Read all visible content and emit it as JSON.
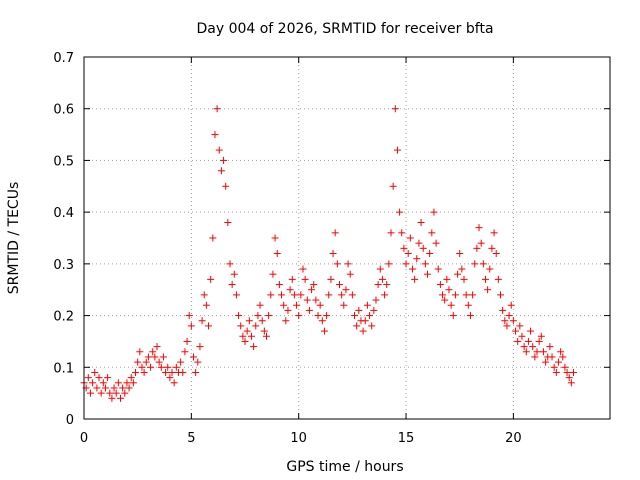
{
  "chart_data": {
    "type": "scatter",
    "title": "Day 004 of 2026, SRMTID for receiver bfta",
    "xlabel": "GPS time / hours",
    "ylabel": "SRMTID / TECUs",
    "xlim": [
      0,
      24.5
    ],
    "ylim": [
      0,
      0.7
    ],
    "xticks": [
      0,
      5,
      10,
      15,
      20
    ],
    "xtick_labels": [
      "0",
      "5",
      "10",
      "15",
      "20"
    ],
    "yticks": [
      0,
      0.1,
      0.2,
      0.3,
      0.4,
      0.5,
      0.6,
      0.7
    ],
    "ytick_labels": [
      "0",
      "0.1",
      "0.2",
      "0.3",
      "0.4",
      "0.5",
      "0.6",
      "0.7"
    ],
    "grid": true,
    "marker": "plus",
    "color": "#ff0000",
    "series": [
      {
        "name": "SRMTID",
        "x": [
          0.0,
          0.1,
          0.2,
          0.3,
          0.4,
          0.5,
          0.6,
          0.7,
          0.8,
          0.9,
          1.0,
          1.1,
          1.2,
          1.3,
          1.4,
          1.5,
          1.6,
          1.7,
          1.8,
          1.9,
          2.0,
          2.1,
          2.2,
          2.3,
          2.4,
          2.5,
          2.6,
          2.7,
          2.8,
          2.9,
          3.0,
          3.1,
          3.2,
          3.3,
          3.4,
          3.5,
          3.6,
          3.7,
          3.8,
          3.9,
          4.0,
          4.1,
          4.2,
          4.3,
          4.4,
          4.5,
          4.6,
          4.7,
          4.8,
          4.9,
          5.0,
          5.1,
          5.2,
          5.3,
          5.4,
          5.5,
          5.6,
          5.7,
          5.8,
          5.9,
          6.0,
          6.1,
          6.2,
          6.3,
          6.4,
          6.5,
          6.6,
          6.7,
          6.8,
          6.9,
          7.0,
          7.1,
          7.2,
          7.3,
          7.4,
          7.5,
          7.6,
          7.7,
          7.8,
          7.9,
          8.0,
          8.1,
          8.2,
          8.3,
          8.4,
          8.5,
          8.6,
          8.7,
          8.8,
          8.9,
          9.0,
          9.1,
          9.2,
          9.3,
          9.4,
          9.5,
          9.6,
          9.7,
          9.8,
          9.9,
          10.0,
          10.1,
          10.2,
          10.3,
          10.4,
          10.5,
          10.6,
          10.7,
          10.8,
          10.9,
          11.0,
          11.1,
          11.2,
          11.3,
          11.4,
          11.5,
          11.6,
          11.7,
          11.8,
          11.9,
          12.0,
          12.1,
          12.2,
          12.3,
          12.4,
          12.5,
          12.6,
          12.7,
          12.8,
          12.9,
          13.0,
          13.1,
          13.2,
          13.3,
          13.4,
          13.5,
          13.6,
          13.7,
          13.8,
          13.9,
          14.0,
          14.1,
          14.2,
          14.3,
          14.4,
          14.5,
          14.6,
          14.7,
          14.8,
          14.9,
          15.0,
          15.1,
          15.2,
          15.3,
          15.4,
          15.5,
          15.6,
          15.7,
          15.8,
          15.9,
          16.0,
          16.1,
          16.2,
          16.3,
          16.4,
          16.5,
          16.6,
          16.7,
          16.8,
          16.9,
          17.0,
          17.1,
          17.2,
          17.3,
          17.4,
          17.5,
          17.6,
          17.7,
          17.8,
          17.9,
          18.0,
          18.1,
          18.2,
          18.3,
          18.4,
          18.5,
          18.6,
          18.7,
          18.8,
          18.9,
          19.0,
          19.1,
          19.2,
          19.3,
          19.4,
          19.5,
          19.6,
          19.7,
          19.8,
          19.9,
          20.0,
          20.1,
          20.2,
          20.3,
          20.4,
          20.5,
          20.6,
          20.7,
          20.8,
          20.9,
          21.0,
          21.1,
          21.2,
          21.3,
          21.4,
          21.5,
          21.6,
          21.7,
          21.8,
          21.9,
          22.0,
          22.1,
          22.2,
          22.3,
          22.4,
          22.5,
          22.6,
          22.7,
          22.8
        ],
        "y": [
          0.07,
          0.06,
          0.08,
          0.05,
          0.07,
          0.09,
          0.06,
          0.08,
          0.05,
          0.07,
          0.06,
          0.08,
          0.05,
          0.04,
          0.06,
          0.05,
          0.07,
          0.04,
          0.06,
          0.05,
          0.07,
          0.06,
          0.08,
          0.07,
          0.09,
          0.11,
          0.13,
          0.1,
          0.09,
          0.11,
          0.12,
          0.1,
          0.13,
          0.12,
          0.14,
          0.11,
          0.1,
          0.12,
          0.09,
          0.1,
          0.08,
          0.09,
          0.07,
          0.1,
          0.09,
          0.11,
          0.09,
          0.13,
          0.15,
          0.2,
          0.18,
          0.12,
          0.09,
          0.11,
          0.14,
          0.19,
          0.24,
          0.22,
          0.18,
          0.27,
          0.35,
          0.55,
          0.6,
          0.52,
          0.48,
          0.5,
          0.45,
          0.38,
          0.3,
          0.26,
          0.28,
          0.24,
          0.2,
          0.18,
          0.16,
          0.15,
          0.17,
          0.19,
          0.16,
          0.14,
          0.18,
          0.2,
          0.22,
          0.19,
          0.17,
          0.16,
          0.2,
          0.24,
          0.28,
          0.35,
          0.32,
          0.26,
          0.24,
          0.22,
          0.19,
          0.21,
          0.25,
          0.27,
          0.24,
          0.22,
          0.2,
          0.24,
          0.29,
          0.27,
          0.23,
          0.21,
          0.25,
          0.26,
          0.23,
          0.2,
          0.22,
          0.19,
          0.17,
          0.2,
          0.24,
          0.27,
          0.32,
          0.36,
          0.3,
          0.26,
          0.24,
          0.22,
          0.25,
          0.3,
          0.28,
          0.24,
          0.2,
          0.18,
          0.21,
          0.19,
          0.17,
          0.19,
          0.22,
          0.2,
          0.18,
          0.21,
          0.23,
          0.26,
          0.29,
          0.27,
          0.24,
          0.26,
          0.3,
          0.36,
          0.45,
          0.6,
          0.52,
          0.4,
          0.36,
          0.33,
          0.3,
          0.32,
          0.35,
          0.29,
          0.27,
          0.31,
          0.34,
          0.38,
          0.33,
          0.3,
          0.28,
          0.32,
          0.36,
          0.4,
          0.34,
          0.29,
          0.26,
          0.24,
          0.23,
          0.27,
          0.25,
          0.22,
          0.2,
          0.24,
          0.28,
          0.32,
          0.29,
          0.27,
          0.24,
          0.22,
          0.2,
          0.24,
          0.3,
          0.33,
          0.37,
          0.34,
          0.3,
          0.27,
          0.25,
          0.29,
          0.33,
          0.36,
          0.32,
          0.27,
          0.24,
          0.21,
          0.19,
          0.18,
          0.2,
          0.22,
          0.19,
          0.17,
          0.15,
          0.18,
          0.16,
          0.14,
          0.13,
          0.15,
          0.17,
          0.14,
          0.12,
          0.13,
          0.15,
          0.16,
          0.13,
          0.11,
          0.12,
          0.14,
          0.12,
          0.1,
          0.09,
          0.11,
          0.13,
          0.12,
          0.1,
          0.09,
          0.08,
          0.07,
          0.09
        ]
      }
    ]
  }
}
